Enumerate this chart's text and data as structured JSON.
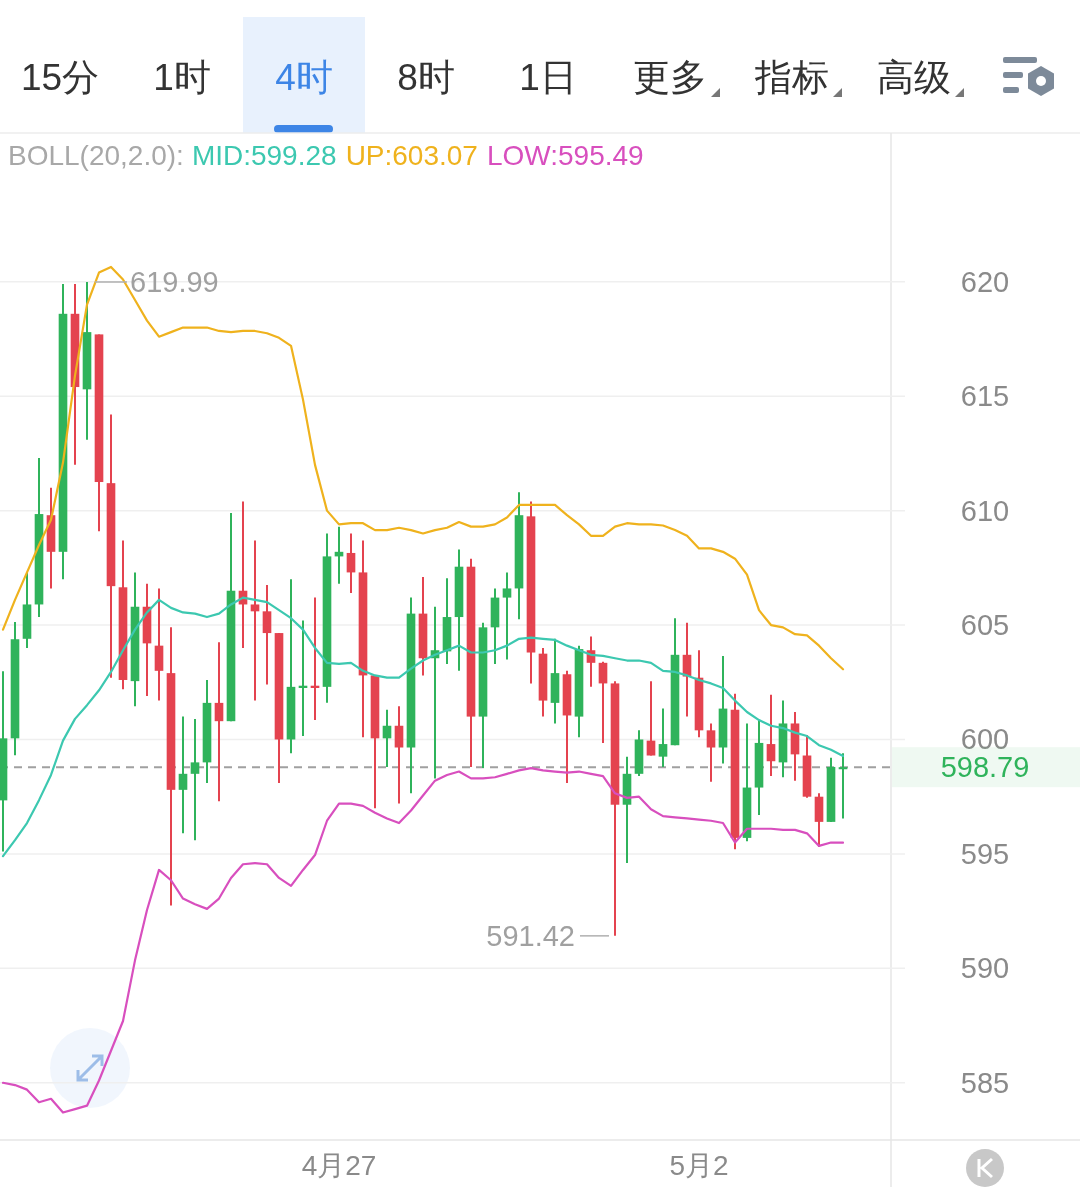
{
  "chart_data": {
    "type": "candlestick",
    "annotations": [
      "15分",
      "1时",
      "4时",
      "8时",
      "1日",
      "更多",
      "指标",
      "高级",
      "619.99",
      "591.42"
    ],
    "legend_title": "BOLL(20,2.0):",
    "legend": "top",
    "grid": "y",
    "categories": [
      null,
      null,
      null,
      null,
      null,
      null,
      null,
      null,
      null,
      null,
      null,
      null,
      null,
      null,
      null,
      null,
      null,
      null,
      null,
      null,
      null,
      null,
      null,
      null,
      null,
      null,
      null,
      null,
      "4月27",
      null,
      null,
      null,
      null,
      null,
      null,
      null,
      null,
      null,
      null,
      null,
      null,
      null,
      null,
      null,
      null,
      null,
      null,
      null,
      null,
      null,
      null,
      null,
      null,
      null,
      null,
      null,
      null,
      null,
      "5月2",
      null,
      null,
      null,
      null,
      null,
      null,
      null,
      null,
      null,
      null,
      null,
      null
    ],
    "colors": [
      "#2fb35b",
      "#2fb35b",
      "#2fb35b",
      "#2fb35b",
      "#e4434f",
      "#2fb35b",
      "#e4434f",
      "#2fb35b",
      "#e4434f",
      "#e4434f",
      "#e4434f",
      "#2fb35b",
      "#e4434f",
      "#e4434f",
      "#e4434f",
      "#2fb35b",
      "#2fb35b",
      "#2fb35b",
      "#e4434f",
      "#2fb35b",
      "#e4434f",
      "#e4434f",
      "#e4434f",
      "#e4434f",
      "#2fb35b",
      "#2fb35b",
      "#e4434f",
      "#2fb35b",
      "#2fb35b",
      "#e4434f",
      "#e4434f",
      "#e4434f",
      "#2fb35b",
      "#e4434f",
      "#2fb35b",
      "#e4434f",
      "#2fb35b",
      "#2fb35b",
      "#2fb35b",
      "#e4434f",
      "#2fb35b",
      "#2fb35b",
      "#2fb35b",
      "#2fb35b",
      "#e4434f",
      "#e4434f",
      "#2fb35b",
      "#e4434f",
      "#2fb35b",
      "#e4434f",
      "#e4434f",
      "#e4434f",
      "#2fb35b",
      "#2fb35b",
      "#e4434f",
      "#2fb35b",
      "#2fb35b",
      "#e4434f",
      "#e4434f",
      "#e4434f",
      "#2fb35b",
      "#e4434f",
      "#2fb35b",
      "#2fb35b",
      "#e4434f",
      "#2fb35b",
      "#e4434f",
      "#e4434f",
      "#e4434f",
      "#2fb35b",
      "#2fb35b"
    ],
    "ohlc": [
      [
        597.34,
        602.98,
        595.11,
        600.05
      ],
      [
        600.05,
        605.13,
        599.31,
        604.38
      ],
      [
        604.4,
        607.3,
        604.0,
        605.9
      ],
      [
        605.9,
        612.3,
        605.35,
        609.85
      ],
      [
        609.8,
        611.0,
        606.6,
        608.2
      ],
      [
        608.2,
        619.9,
        607.0,
        618.6
      ],
      [
        618.6,
        619.9,
        612.0,
        615.4
      ],
      [
        615.3,
        619.99,
        613.1,
        617.8
      ],
      [
        617.7,
        617.7,
        609.1,
        611.25
      ],
      [
        611.2,
        614.2,
        602.7,
        606.7
      ],
      [
        606.65,
        608.7,
        602.2,
        602.6
      ],
      [
        602.55,
        607.3,
        601.45,
        605.8
      ],
      [
        605.8,
        606.8,
        601.9,
        604.2
      ],
      [
        604.1,
        606.6,
        601.7,
        603.0
      ],
      [
        602.9,
        604.9,
        592.75,
        597.8
      ],
      [
        597.8,
        601.0,
        595.9,
        598.5
      ],
      [
        598.5,
        600.9,
        595.6,
        599.0
      ],
      [
        599.0,
        602.6,
        598.1,
        601.6
      ],
      [
        601.6,
        604.25,
        597.3,
        600.8
      ],
      [
        600.8,
        609.9,
        600.8,
        606.5
      ],
      [
        606.5,
        610.4,
        604.0,
        605.9
      ],
      [
        605.9,
        608.7,
        601.7,
        605.6
      ],
      [
        605.6,
        606.75,
        602.4,
        604.65
      ],
      [
        604.65,
        604.65,
        598.1,
        600.0
      ],
      [
        600.0,
        607.0,
        599.4,
        602.3
      ],
      [
        602.25,
        605.2,
        600.15,
        602.35
      ],
      [
        602.35,
        606.2,
        600.85,
        602.25
      ],
      [
        602.3,
        609.0,
        601.6,
        608.0
      ],
      [
        608.0,
        609.3,
        606.8,
        608.2
      ],
      [
        608.15,
        609.0,
        606.4,
        607.3
      ],
      [
        607.3,
        608.7,
        600.1,
        602.8
      ],
      [
        602.8,
        602.8,
        597.0,
        600.05
      ],
      [
        600.05,
        601.3,
        598.8,
        600.6
      ],
      [
        600.6,
        601.45,
        597.2,
        599.65
      ],
      [
        599.65,
        606.2,
        597.65,
        605.5
      ],
      [
        605.5,
        607.1,
        602.8,
        603.55
      ],
      [
        603.55,
        605.8,
        598.3,
        603.9
      ],
      [
        603.85,
        607.05,
        603.3,
        605.35
      ],
      [
        605.35,
        608.3,
        603.0,
        607.55
      ],
      [
        607.55,
        607.9,
        598.8,
        601.0
      ],
      [
        601.0,
        605.1,
        598.75,
        604.9
      ],
      [
        604.9,
        606.6,
        603.3,
        606.2
      ],
      [
        606.2,
        607.3,
        603.5,
        606.6
      ],
      [
        606.6,
        610.8,
        605.25,
        609.8
      ],
      [
        609.75,
        610.4,
        602.45,
        603.8
      ],
      [
        603.75,
        604.0,
        601.0,
        601.7
      ],
      [
        601.6,
        604.4,
        600.7,
        602.9
      ],
      [
        602.85,
        603.0,
        598.1,
        601.05
      ],
      [
        601.0,
        604.1,
        600.1,
        603.95
      ],
      [
        603.9,
        604.5,
        602.3,
        603.35
      ],
      [
        603.35,
        603.4,
        599.85,
        602.45
      ],
      [
        602.45,
        602.55,
        591.42,
        597.15
      ],
      [
        597.15,
        599.25,
        594.6,
        598.5
      ],
      [
        598.5,
        600.4,
        598.4,
        600.0
      ],
      [
        599.95,
        602.55,
        599.3,
        599.3
      ],
      [
        599.25,
        601.35,
        598.8,
        599.8
      ],
      [
        599.75,
        605.3,
        599.75,
        603.7
      ],
      [
        603.7,
        605.1,
        601.0,
        602.75
      ],
      [
        602.7,
        603.9,
        600.1,
        600.4
      ],
      [
        600.4,
        600.7,
        598.15,
        599.65
      ],
      [
        599.65,
        603.65,
        598.95,
        601.35
      ],
      [
        601.3,
        602.0,
        595.2,
        595.7
      ],
      [
        595.7,
        600.7,
        595.55,
        597.9
      ],
      [
        597.9,
        600.85,
        596.7,
        599.85
      ],
      [
        599.8,
        601.95,
        598.4,
        599.05
      ],
      [
        599.0,
        601.7,
        598.35,
        600.7
      ],
      [
        600.7,
        601.2,
        598.2,
        599.35
      ],
      [
        599.3,
        600.2,
        597.45,
        597.5
      ],
      [
        597.5,
        597.65,
        595.3,
        596.4
      ],
      [
        596.4,
        599.2,
        596.4,
        598.8
      ],
      [
        598.7,
        599.4,
        596.55,
        598.79
      ]
    ],
    "series": [
      {
        "name": "MID:599.28",
        "type": "line",
        "color": "#3cc8b0",
        "values": [
          594.9,
          595.6,
          596.35,
          597.35,
          598.45,
          599.95,
          600.9,
          601.5,
          602.15,
          602.95,
          603.9,
          604.8,
          605.55,
          606.1,
          605.75,
          605.55,
          605.5,
          605.35,
          605.5,
          605.9,
          606.2,
          606.1,
          606.0,
          605.65,
          605.3,
          604.8,
          604.0,
          603.35,
          603.3,
          603.35,
          603.0,
          602.8,
          602.7,
          602.7,
          603.1,
          603.45,
          603.7,
          603.9,
          604.1,
          603.8,
          603.8,
          603.9,
          604.1,
          604.4,
          604.45,
          604.4,
          604.35,
          604.1,
          603.9,
          603.7,
          603.65,
          603.55,
          603.45,
          603.45,
          603.35,
          603.0,
          602.95,
          602.8,
          602.6,
          602.45,
          602.25,
          601.7,
          601.2,
          600.85,
          600.6,
          600.5,
          600.3,
          600.15,
          599.75,
          599.55,
          599.28
        ]
      },
      {
        "name": "UP:603.07",
        "type": "line",
        "color": "#efb21d",
        "values": [
          604.8,
          606.1,
          607.3,
          608.5,
          609.6,
          612.1,
          615.9,
          619.0,
          620.4,
          620.65,
          620.1,
          619.2,
          618.3,
          617.6,
          617.8,
          618.0,
          618.0,
          618.0,
          617.85,
          617.8,
          617.85,
          617.85,
          617.75,
          617.55,
          617.2,
          614.85,
          612.0,
          610.0,
          609.4,
          609.45,
          609.45,
          609.15,
          609.15,
          609.25,
          609.15,
          609.0,
          609.15,
          609.25,
          609.5,
          609.3,
          609.3,
          609.4,
          609.7,
          610.25,
          610.25,
          610.25,
          610.25,
          609.8,
          609.4,
          608.9,
          608.9,
          609.3,
          609.45,
          609.4,
          609.4,
          609.35,
          609.15,
          608.9,
          608.35,
          608.35,
          608.2,
          607.9,
          607.2,
          605.65,
          605.0,
          604.9,
          604.6,
          604.55,
          604.1,
          603.55,
          603.07
        ]
      },
      {
        "name": "LOW:595.49",
        "type": "line",
        "color": "#d84fbe",
        "values": [
          585.0,
          584.9,
          584.7,
          584.15,
          584.3,
          583.7,
          583.85,
          584.0,
          585.1,
          586.4,
          587.7,
          590.35,
          592.55,
          594.3,
          593.85,
          593.05,
          592.8,
          592.6,
          593.05,
          593.95,
          594.55,
          594.6,
          594.55,
          593.95,
          593.6,
          594.3,
          594.95,
          596.45,
          597.2,
          597.2,
          597.1,
          596.8,
          596.55,
          596.35,
          596.9,
          597.55,
          598.2,
          598.45,
          598.6,
          598.3,
          598.3,
          598.35,
          598.5,
          598.65,
          598.75,
          598.65,
          598.6,
          598.55,
          598.6,
          598.5,
          598.4,
          597.65,
          597.45,
          597.5,
          596.95,
          596.65,
          596.6,
          596.55,
          596.5,
          596.45,
          596.35,
          595.5,
          596.1,
          596.1,
          596.1,
          596.05,
          596.05,
          595.9,
          595.35,
          595.5,
          595.49
        ]
      }
    ],
    "ylim": [
      582.5,
      626.5
    ],
    "yticks": [
      585,
      590,
      595,
      600,
      605,
      610,
      615,
      620
    ],
    "ref_lines": [
      {
        "axis": "y",
        "value": 598.79,
        "label": "598.79",
        "color": "#a0a0a0",
        "line_style": "dashed"
      }
    ]
  }
}
